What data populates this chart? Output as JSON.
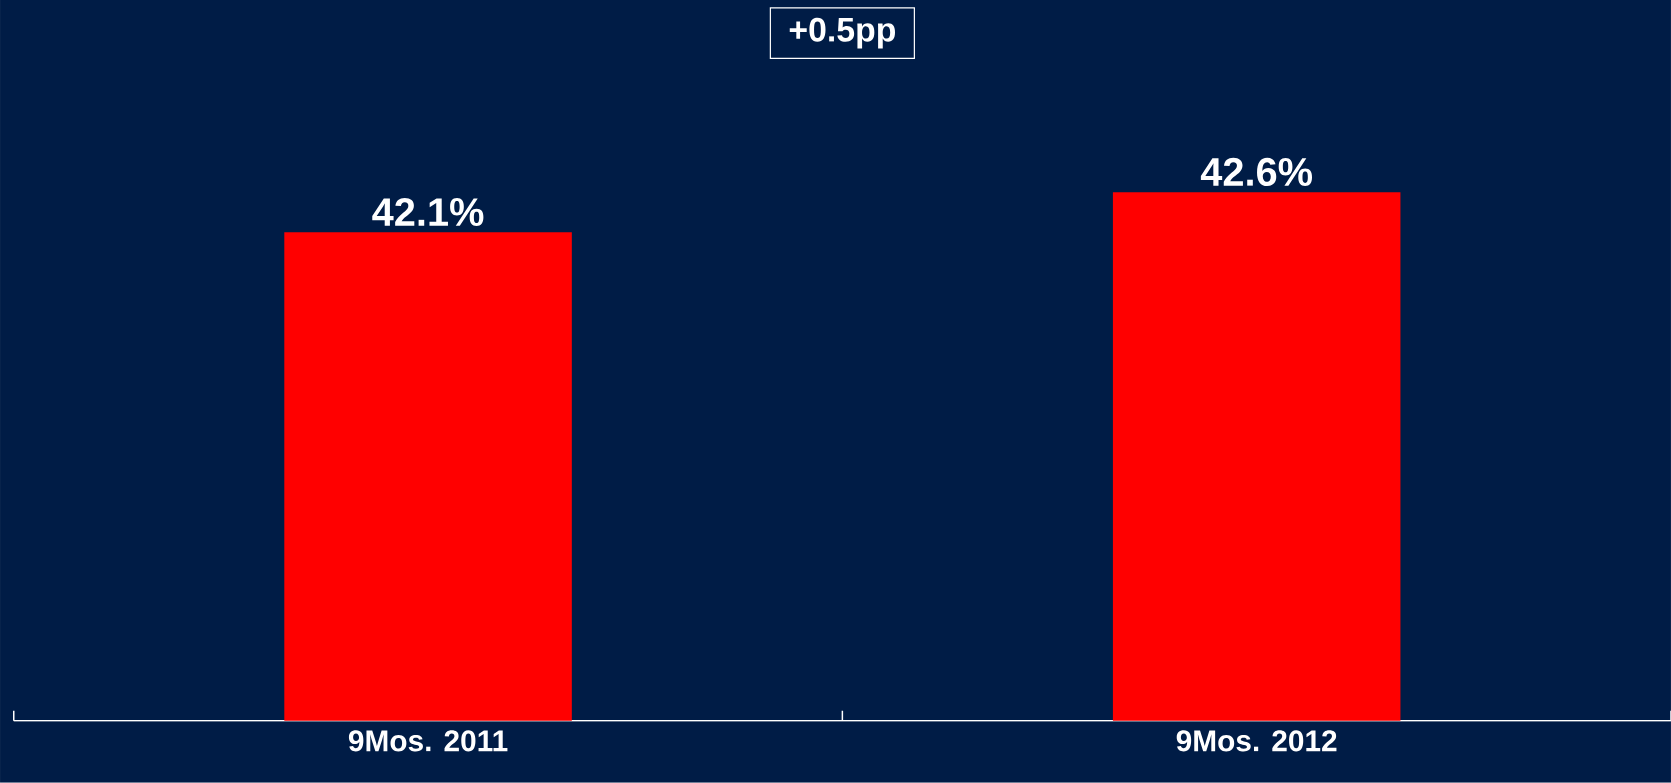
{
  "chart_data": {
    "type": "bar",
    "categories": [
      "9Mos. 2011",
      "9Mos. 2012"
    ],
    "values": [
      42.1,
      42.6
    ],
    "value_labels": [
      "42.1%",
      "42.6%"
    ],
    "color": "#ff0000",
    "ylim": [
      36,
      45
    ],
    "tick_labels": "x",
    "annotations": [
      "+0.5pp"
    ]
  }
}
